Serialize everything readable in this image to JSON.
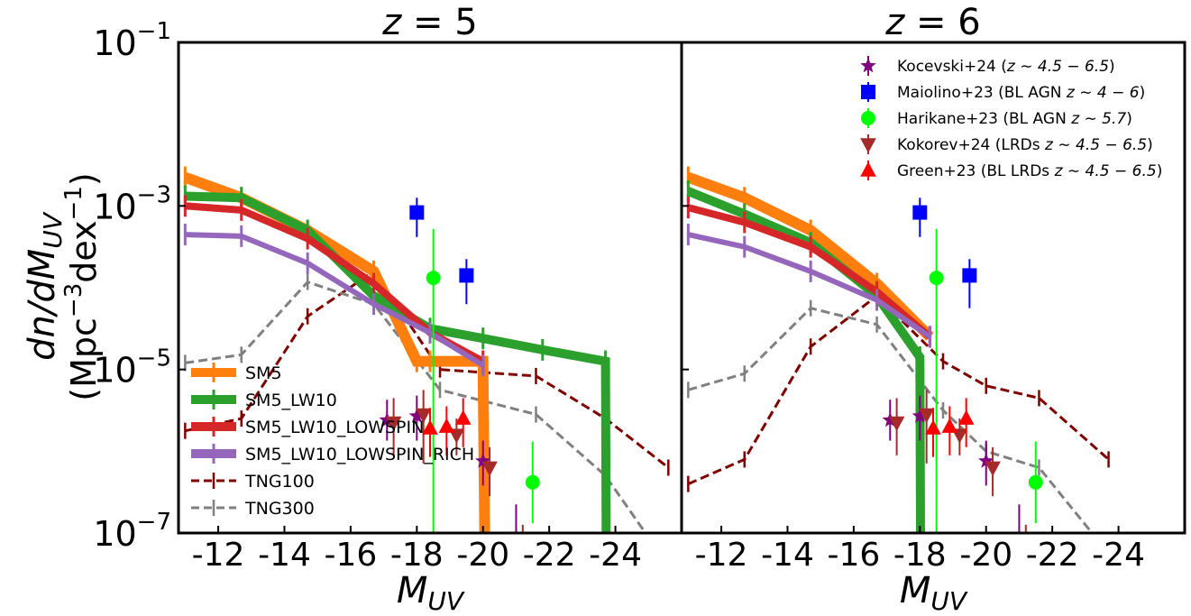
{
  "ylabel_line1": "dn/dM",
  "ylabel_sub": "UV",
  "ylabel_line2_pre": "(Mpc",
  "ylabel_line2_sup1": "−3",
  "ylabel_line2_mid": "dex",
  "ylabel_line2_sup2": "−1",
  "ylabel_line2_post": ")",
  "xlabel_main": "M",
  "xlabel_sub": "UV",
  "y_ticks": [
    {
      "value": -1,
      "base": "10",
      "exp": "−1"
    },
    {
      "value": -3,
      "base": "10",
      "exp": "−3"
    },
    {
      "value": -5,
      "base": "10",
      "exp": "−5"
    },
    {
      "value": -7,
      "base": "10",
      "exp": "−7"
    }
  ],
  "x_ticks": [
    {
      "value": -12,
      "label": "-12"
    },
    {
      "value": -14,
      "label": "-14"
    },
    {
      "value": -16,
      "label": "-16"
    },
    {
      "value": -18,
      "label": "-18"
    },
    {
      "value": -20,
      "label": "-20"
    },
    {
      "value": -22,
      "label": "-22"
    },
    {
      "value": -24,
      "label": "-24"
    }
  ],
  "legend_left": [
    {
      "key": "SM5",
      "label": "SM5",
      "color": "#ff7f0e",
      "style": "thick"
    },
    {
      "key": "SM5_LW10",
      "label": "SM5_LW10",
      "color": "#2ca02c",
      "style": "thick"
    },
    {
      "key": "SM5_LW10_LOWSPIN",
      "label": "SM5_LW10_LOWSPIN",
      "color": "#d62728",
      "style": "thick"
    },
    {
      "key": "SM5_LW10_LOWSPIN_RICH",
      "label": "SM5_LW10_LOWSPIN_RICH",
      "color": "#9467bd",
      "style": "thick"
    },
    {
      "key": "TNG100",
      "label": "TNG100",
      "color": "#800000",
      "style": "dashed"
    },
    {
      "key": "TNG300",
      "label": "TNG300",
      "color": "#808080",
      "style": "dashed"
    }
  ],
  "legend_right": [
    {
      "key": "kocevski",
      "label_pre": "Kocevski+24 (",
      "label_math": "z ∼ 4.5 − 6.5",
      "label_post": ")",
      "color": "#800080",
      "marker": "star"
    },
    {
      "key": "maiolino",
      "label_pre": "Maiolino+23 (BL AGN ",
      "label_math": "z ∼ 4 − 6",
      "label_post": ")",
      "color": "#0000ff",
      "marker": "square"
    },
    {
      "key": "harikane",
      "label_pre": "Harikane+23 (BL AGN ",
      "label_math": "z ∼ 5.7",
      "label_post": ")",
      "color": "#00ff00",
      "marker": "circle"
    },
    {
      "key": "kokorev",
      "label_pre": "Kokorev+24 (LRDs ",
      "label_math": "z ∼ 4.5 − 6.5",
      "label_post": ")",
      "color": "#a52a2a",
      "marker": "tri_down"
    },
    {
      "key": "green",
      "label_pre": "Green+23 (BL LRDs ",
      "label_math": "z ∼ 4.5 − 6.5",
      "label_post": ")",
      "color": "#ff0000",
      "marker": "tri_up"
    }
  ],
  "chart_data": [
    {
      "type": "line",
      "title_var": "z",
      "title_val": "= 5",
      "xlabel": "M_UV",
      "ylabel": "dn/dM_UV (Mpc^-3 dex^-1)",
      "y_scale": "log",
      "xlim": [
        -10.8,
        -26.0
      ],
      "ylim": [
        -7,
        -1
      ],
      "models": [
        {
          "name": "SM5",
          "color": "#ff7f0e",
          "width": 12,
          "x": [
            -11,
            -12.7,
            -14.7,
            -16.7,
            -18,
            -18.4,
            -20,
            -20.05
          ],
          "y": [
            -2.65,
            -2.9,
            -3.3,
            -3.8,
            -4.9,
            -4.9,
            -4.9,
            -7
          ]
        },
        {
          "name": "SM5_LW10",
          "color": "#2ca02c",
          "width": 10,
          "x": [
            -11,
            -12.7,
            -14.7,
            -16.7,
            -18.4,
            -20,
            -21.8,
            -23.7,
            -23.72
          ],
          "y": [
            -2.88,
            -2.9,
            -3.3,
            -4.1,
            -4.5,
            -4.62,
            -4.76,
            -4.9,
            -7
          ]
        },
        {
          "name": "SM5_LW10_LOWSPIN",
          "color": "#d62728",
          "width": 8,
          "x": [
            -11,
            -12.7,
            -14.7,
            -16.7,
            -18.4,
            -20
          ],
          "y": [
            -3.0,
            -3.05,
            -3.4,
            -3.95,
            -4.55,
            -4.9
          ]
        },
        {
          "name": "SM5_LW10_LOWSPIN_RICH",
          "color": "#9467bd",
          "width": 6,
          "x": [
            -11,
            -12.7,
            -14.7,
            -16.7,
            -18.4,
            -20
          ],
          "y": [
            -3.35,
            -3.37,
            -3.7,
            -4.2,
            -4.55,
            -4.95
          ]
        }
      ],
      "sims": [
        {
          "name": "TNG100",
          "color": "#800000",
          "x": [
            -11,
            -12.7,
            -14.7,
            -16.7,
            -18.7,
            -21.6,
            -23.7,
            -25.6
          ],
          "y": [
            -5.75,
            -5.6,
            -4.35,
            -3.8,
            -5.0,
            -5.08,
            -5.6,
            -6.2
          ]
        },
        {
          "name": "TNG300",
          "color": "#808080",
          "x": [
            -11,
            -12.7,
            -14.7,
            -16.7,
            -18.7,
            -21.6,
            -23.7,
            -25.6
          ],
          "y": [
            -4.92,
            -4.82,
            -3.93,
            -4.2,
            -5.25,
            -5.55,
            -6.3,
            -7.4
          ]
        }
      ],
      "obs": [
        {
          "name": "Kocevski+24",
          "marker": "star",
          "color": "#800080",
          "x": [
            -17.1,
            -18.0,
            -20.0,
            -21.0
          ],
          "y": [
            -5.62,
            -5.57,
            -6.12,
            -7.05
          ],
          "ylo": [
            0.25,
            0.3,
            0.3,
            0.45
          ],
          "yhi": [
            0.25,
            0.25,
            0.25,
            0.4
          ]
        },
        {
          "name": "Maiolino+23",
          "marker": "square",
          "color": "#0000ff",
          "x": [
            -18.0,
            -19.5
          ],
          "y": [
            -3.08,
            -3.85
          ],
          "ylo": [
            0.3,
            0.35
          ],
          "yhi": [
            0.18,
            0.2
          ]
        },
        {
          "name": "Harikane+23",
          "marker": "circle",
          "color": "#00ff00",
          "x": [
            -18.5,
            -21.5
          ],
          "y": [
            -3.88,
            -6.38
          ],
          "ylo": [
            3.2,
            0.5
          ],
          "yhi": [
            0.6,
            0.5
          ]
        },
        {
          "name": "Kokorev+24",
          "marker": "tri_down",
          "color": "#a52a2a",
          "x": [
            -17.3,
            -18.2,
            -19.2,
            -20.2,
            -21.2
          ],
          "y": [
            -5.65,
            -5.55,
            -5.8,
            -6.2,
            -7.3
          ],
          "ylo": [
            0.4,
            0.6,
            0.25,
            0.35,
            0.6
          ],
          "yhi": [
            0.3,
            0.3,
            0.2,
            0.25,
            0.4
          ]
        },
        {
          "name": "Green+23",
          "marker": "tri_up",
          "color": "#ff0000",
          "x": [
            -18.4,
            -18.9,
            -19.4
          ],
          "y": [
            -5.72,
            -5.7,
            -5.6
          ],
          "ylo": [
            0.35,
            0.35,
            0.35
          ],
          "yhi": [
            0.25,
            0.25,
            0.25
          ]
        }
      ]
    },
    {
      "type": "line",
      "title_var": "z",
      "title_val": "= 6",
      "xlabel": "M_UV",
      "ylabel": "",
      "y_scale": "log",
      "xlim": [
        -10.8,
        -26.0
      ],
      "ylim": [
        -7,
        -1
      ],
      "models": [
        {
          "name": "SM5",
          "color": "#ff7f0e",
          "width": 12,
          "x": [
            -11,
            -12.7,
            -14.7,
            -16.7,
            -18.3
          ],
          "y": [
            -2.65,
            -2.9,
            -3.3,
            -3.95,
            -4.6
          ]
        },
        {
          "name": "SM5_LW10",
          "color": "#2ca02c",
          "width": 10,
          "x": [
            -11,
            -12.7,
            -14.7,
            -16.7,
            -18.0,
            -18.02
          ],
          "y": [
            -2.82,
            -3.1,
            -3.45,
            -4.1,
            -4.85,
            -7
          ]
        },
        {
          "name": "SM5_LW10_LOWSPIN",
          "color": "#d62728",
          "width": 8,
          "x": [
            -11,
            -12.7,
            -14.7,
            -16.7,
            -18.3
          ],
          "y": [
            -3.02,
            -3.2,
            -3.5,
            -4.05,
            -4.6
          ]
        },
        {
          "name": "SM5_LW10_LOWSPIN_RICH",
          "color": "#9467bd",
          "width": 6,
          "x": [
            -11,
            -12.7,
            -14.7,
            -16.7,
            -18.3
          ],
          "y": [
            -3.35,
            -3.5,
            -3.8,
            -4.15,
            -4.6
          ]
        }
      ],
      "sims": [
        {
          "name": "TNG100",
          "color": "#800000",
          "x": [
            -11,
            -12.7,
            -14.7,
            -16.7,
            -18.7,
            -20.0,
            -21.6,
            -23.7
          ],
          "y": [
            -6.4,
            -6.1,
            -4.72,
            -4.1,
            -4.9,
            -5.2,
            -5.35,
            -6.1
          ]
        },
        {
          "name": "TNG300",
          "color": "#808080",
          "x": [
            -11,
            -12.7,
            -14.7,
            -16.7,
            -18.7,
            -20.0,
            -21.6,
            -23.7
          ],
          "y": [
            -5.25,
            -5.05,
            -4.25,
            -4.45,
            -5.5,
            -6.0,
            -6.2,
            -7.25
          ]
        }
      ],
      "obs": [
        {
          "name": "Kocevski+24",
          "marker": "star",
          "color": "#800080",
          "x": [
            -17.1,
            -18.0,
            -20.0,
            -21.0
          ],
          "y": [
            -5.62,
            -5.57,
            -6.12,
            -7.05
          ],
          "ylo": [
            0.25,
            0.3,
            0.3,
            0.45
          ],
          "yhi": [
            0.25,
            0.25,
            0.25,
            0.4
          ]
        },
        {
          "name": "Maiolino+23",
          "marker": "square",
          "color": "#0000ff",
          "x": [
            -18.0,
            -19.5
          ],
          "y": [
            -3.08,
            -3.85
          ],
          "ylo": [
            0.3,
            0.4
          ],
          "yhi": [
            0.18,
            0.2
          ]
        },
        {
          "name": "Harikane+23",
          "marker": "circle",
          "color": "#00ff00",
          "x": [
            -18.5,
            -21.5
          ],
          "y": [
            -3.88,
            -6.38
          ],
          "ylo": [
            3.2,
            0.5
          ],
          "yhi": [
            0.6,
            0.5
          ]
        },
        {
          "name": "Kokorev+24",
          "marker": "tri_down",
          "color": "#a52a2a",
          "x": [
            -17.3,
            -18.2,
            -19.2,
            -20.2,
            -21.2
          ],
          "y": [
            -5.65,
            -5.55,
            -5.8,
            -6.2,
            -7.3
          ],
          "ylo": [
            0.4,
            0.6,
            0.25,
            0.35,
            0.6
          ],
          "yhi": [
            0.3,
            0.3,
            0.2,
            0.25,
            0.4
          ]
        },
        {
          "name": "Green+23",
          "marker": "tri_up",
          "color": "#ff0000",
          "x": [
            -18.4,
            -18.9,
            -19.4
          ],
          "y": [
            -5.72,
            -5.7,
            -5.6
          ],
          "ylo": [
            0.35,
            0.35,
            0.35
          ],
          "yhi": [
            0.25,
            0.25,
            0.25
          ]
        }
      ]
    }
  ]
}
